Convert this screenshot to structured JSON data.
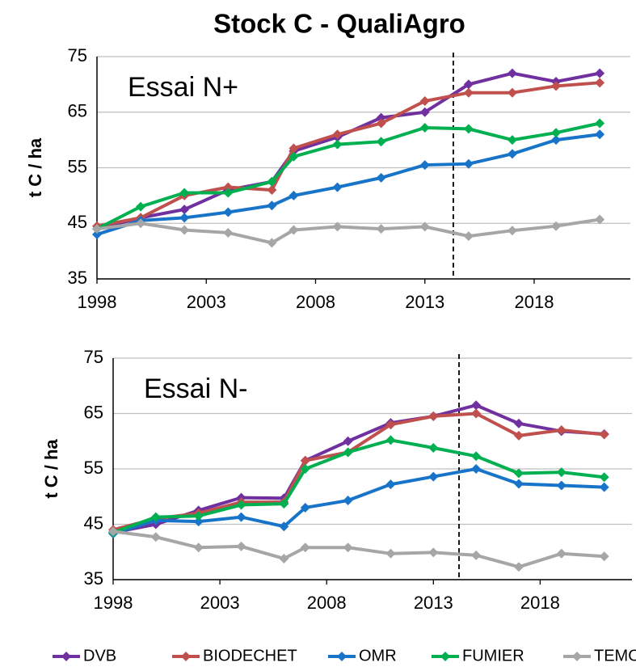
{
  "title": "Stock C - QualiAgro",
  "chart_data": [
    {
      "type": "line",
      "annotation": "Essai N+",
      "ylabel": "t C / ha",
      "x": [
        1998,
        2000,
        2002,
        2004,
        2006,
        2007,
        2009,
        2011,
        2013,
        2015,
        2017,
        2019,
        2021
      ],
      "xlim": [
        1998,
        2022.4
      ],
      "xticks": [
        1998,
        2003,
        2008,
        2013,
        2018
      ],
      "ylim": [
        35,
        75
      ],
      "yticks": [
        35,
        45,
        55,
        65,
        75
      ],
      "grid": true,
      "vline": 2014.3,
      "series": [
        {
          "name": "DVB",
          "color": "#7030a0",
          "values": [
            44,
            46,
            47.5,
            51,
            52.5,
            58,
            60.5,
            64,
            65,
            70,
            72,
            70.5,
            72
          ]
        },
        {
          "name": "BIODECHET",
          "color": "#c0504d",
          "values": [
            44.5,
            46,
            50,
            51.5,
            51,
            58.5,
            61,
            63,
            67,
            68.5,
            68.5,
            69.7,
            70.3
          ]
        },
        {
          "name": "OMR",
          "color": "#1874c8",
          "values": [
            43,
            45.5,
            46,
            47,
            48.2,
            50,
            51.5,
            53.2,
            55.5,
            55.7,
            57.5,
            60,
            61
          ]
        },
        {
          "name": "FUMIER",
          "color": "#00b050",
          "values": [
            44,
            48,
            50.5,
            50.5,
            52.5,
            57,
            59.2,
            59.7,
            62.2,
            62,
            60,
            61.3,
            63
          ]
        },
        {
          "name": "TEMOIN",
          "color": "#a6a6a6",
          "values": [
            44,
            45,
            43.8,
            43.3,
            41.5,
            43.8,
            44.4,
            44,
            44.4,
            42.7,
            43.7,
            44.5,
            45.7
          ]
        }
      ]
    },
    {
      "type": "line",
      "annotation": "Essai N-",
      "ylabel": "t C / ha",
      "x": [
        1998,
        2000,
        2002,
        2004,
        2006,
        2007,
        2009,
        2011,
        2013,
        2015,
        2017,
        2019,
        2021
      ],
      "xlim": [
        1998,
        2022.3
      ],
      "xticks": [
        1998,
        2003,
        2008,
        2013,
        2018
      ],
      "ylim": [
        35,
        75
      ],
      "yticks": [
        35,
        45,
        55,
        65,
        75
      ],
      "grid": true,
      "vline": 2014.2,
      "series": [
        {
          "color": "#7030a0",
          "values": [
            43.5,
            45,
            47.5,
            49.8,
            49.7,
            56.5,
            60,
            63.3,
            64.5,
            66.5,
            63.2,
            61.8,
            61.3
          ]
        },
        {
          "color": "#c0504d",
          "values": [
            44,
            46,
            47,
            49,
            49,
            56.5,
            58,
            63,
            64.5,
            65,
            61,
            62,
            61.2
          ]
        },
        {
          "color": "#1874c8",
          "values": [
            43.3,
            45.7,
            45.5,
            46.3,
            44.6,
            48,
            49.3,
            52.2,
            53.6,
            55,
            52.3,
            52,
            51.7
          ]
        },
        {
          "color": "#00b050",
          "values": [
            43.5,
            46.3,
            46.5,
            48.5,
            48.7,
            55,
            58,
            60.2,
            58.8,
            57.3,
            54.2,
            54.4,
            53.5
          ]
        },
        {
          "color": "#a6a6a6",
          "values": [
            43.7,
            42.7,
            40.8,
            41,
            38.8,
            40.8,
            40.8,
            39.7,
            39.9,
            39.4,
            37.3,
            39.7,
            39.2
          ]
        }
      ]
    }
  ]
}
